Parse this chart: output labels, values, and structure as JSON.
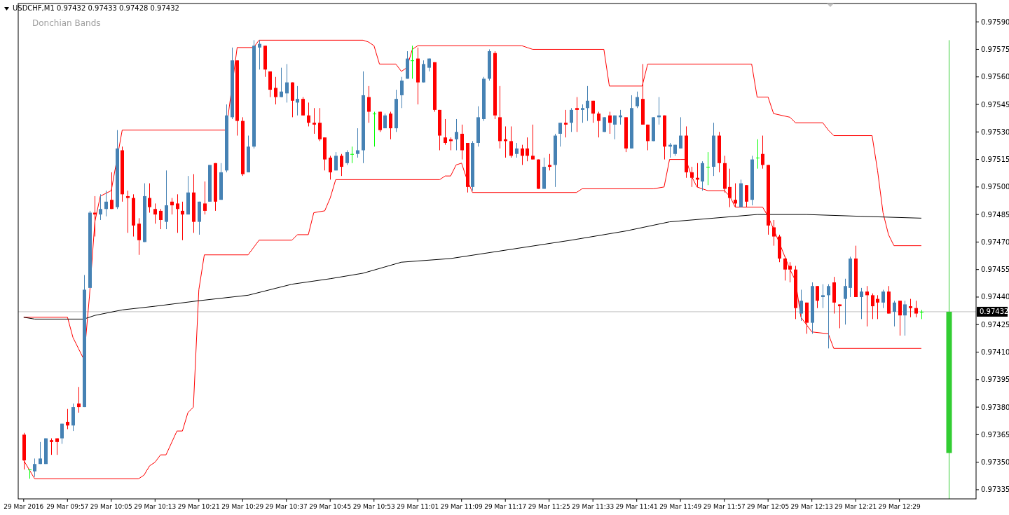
{
  "chart_data": {
    "type": "candlestick",
    "title": "USDCHF,M1 0.97432 0.97433 0.97428 0.97432",
    "subtitle": "Donchian Bands",
    "xlim": [
      "2016-03-29T09:48",
      "2016-03-29T12:43"
    ],
    "xticks": [
      {
        "value": "2016-03-29T09:49",
        "label": "29 Mar 2016"
      },
      {
        "value": "2016-03-29T09:57",
        "label": "29 Mar 09:57"
      },
      {
        "value": "2016-03-29T10:05",
        "label": "29 Mar 10:05"
      },
      {
        "value": "2016-03-29T10:13",
        "label": "29 Mar 10:13"
      },
      {
        "value": "2016-03-29T10:21",
        "label": "29 Mar 10:21"
      },
      {
        "value": "2016-03-29T10:29",
        "label": "29 Mar 10:29"
      },
      {
        "value": "2016-03-29T10:37",
        "label": "29 Mar 10:37"
      },
      {
        "value": "2016-03-29T10:45",
        "label": "29 Mar 10:45"
      },
      {
        "value": "2016-03-29T10:53",
        "label": "29 Mar 10:53"
      },
      {
        "value": "2016-03-29T11:01",
        "label": "29 Mar 11:01"
      },
      {
        "value": "2016-03-29T11:09",
        "label": "29 Mar 11:09"
      },
      {
        "value": "2016-03-29T11:17",
        "label": "29 Mar 11:17"
      },
      {
        "value": "2016-03-29T11:25",
        "label": "29 Mar 11:25"
      },
      {
        "value": "2016-03-29T11:33",
        "label": "29 Mar 11:33"
      },
      {
        "value": "2016-03-29T11:41",
        "label": "29 Mar 11:41"
      },
      {
        "value": "2016-03-29T11:49",
        "label": "29 Mar 11:49"
      },
      {
        "value": "2016-03-29T11:57",
        "label": "29 Mar 11:57"
      },
      {
        "value": "2016-03-29T12:05",
        "label": "29 Mar 12:05"
      },
      {
        "value": "2016-03-29T12:13",
        "label": "29 Mar 12:13"
      },
      {
        "value": "2016-03-29T12:21",
        "label": "29 Mar 12:21"
      },
      {
        "value": "2016-03-29T12:29",
        "label": "29 Mar 12:29"
      }
    ],
    "ylim": [
      0.9733,
      0.976
    ],
    "yticks": [
      0.97335,
      {
        "value": 0.9735,
        "label": "0.97350"
      },
      0.97365,
      {
        "value": 0.9738,
        "label": "0.97380"
      },
      0.97395,
      {
        "value": 0.9741,
        "label": "0.97410"
      },
      0.97425,
      {
        "value": 0.9744,
        "label": "0.97440"
      },
      0.97455,
      {
        "value": 0.9747,
        "label": "0.97470"
      },
      0.97485,
      {
        "value": 0.975,
        "label": "0.97500"
      },
      0.97515,
      {
        "value": 0.9753,
        "label": "0.97530"
      },
      0.97545,
      {
        "value": 0.9756,
        "label": "0.97560"
      },
      0.97575,
      {
        "value": 0.9759,
        "label": "0.97590"
      }
    ],
    "ref_lines": [
      {
        "axis": "y",
        "value": 0.97432,
        "label": "0.97432",
        "color": "#c0c0c0"
      }
    ],
    "series": [
      {
        "x": [
          "2016-03-29T09:49",
          "2016-03-29T09:50",
          "2016-03-29T09:51",
          "2016-03-29T09:52",
          "2016-03-29T09:53",
          "2016-03-29T09:54",
          "2016-03-29T09:55",
          "2016-03-29T09:56",
          "2016-03-29T09:57",
          "2016-03-29T09:58",
          "2016-03-29T09:59",
          "2016-03-29T10:00",
          "2016-03-29T10:01",
          "2016-03-29T10:02",
          "2016-03-29T10:03",
          "2016-03-29T10:04",
          "2016-03-29T10:05",
          "2016-03-29T10:06",
          "2016-03-29T10:07",
          "2016-03-29T10:08",
          "2016-03-29T10:09",
          "2016-03-29T10:10",
          "2016-03-29T10:11",
          "2016-03-29T10:12",
          "2016-03-29T10:13",
          "2016-03-29T10:14",
          "2016-03-29T10:15",
          "2016-03-29T10:16",
          "2016-03-29T10:17",
          "2016-03-29T10:18",
          "2016-03-29T10:19",
          "2016-03-29T10:20",
          "2016-03-29T10:21",
          "2016-03-29T10:22",
          "2016-03-29T10:23",
          "2016-03-29T10:24",
          "2016-03-29T10:25",
          "2016-03-29T10:26",
          "2016-03-29T10:27",
          "2016-03-29T10:28",
          "2016-03-29T10:29",
          "2016-03-29T10:30",
          "2016-03-29T10:31",
          "2016-03-29T10:32",
          "2016-03-29T10:33",
          "2016-03-29T10:34",
          "2016-03-29T10:35",
          "2016-03-29T10:36",
          "2016-03-29T10:37",
          "2016-03-29T10:38",
          "2016-03-29T10:39",
          "2016-03-29T10:40",
          "2016-03-29T10:41",
          "2016-03-29T10:42",
          "2016-03-29T10:43",
          "2016-03-29T10:44",
          "2016-03-29T10:45",
          "2016-03-29T10:46",
          "2016-03-29T10:47",
          "2016-03-29T10:48",
          "2016-03-29T10:49",
          "2016-03-29T10:50",
          "2016-03-29T10:51",
          "2016-03-29T10:52",
          "2016-03-29T10:53",
          "2016-03-29T10:54",
          "2016-03-29T10:55",
          "2016-03-29T10:56",
          "2016-03-29T10:57",
          "2016-03-29T10:58",
          "2016-03-29T10:59",
          "2016-03-29T11:00",
          "2016-03-29T11:01",
          "2016-03-29T11:02",
          "2016-03-29T11:03",
          "2016-03-29T11:04",
          "2016-03-29T11:05",
          "2016-03-29T11:06",
          "2016-03-29T11:07",
          "2016-03-29T11:08",
          "2016-03-29T11:09",
          "2016-03-29T11:10",
          "2016-03-29T11:11",
          "2016-03-29T11:12",
          "2016-03-29T11:13",
          "2016-03-29T11:14",
          "2016-03-29T11:15",
          "2016-03-29T11:16",
          "2016-03-29T11:17",
          "2016-03-29T11:18",
          "2016-03-29T11:19",
          "2016-03-29T11:20",
          "2016-03-29T11:21",
          "2016-03-29T11:22",
          "2016-03-29T11:23",
          "2016-03-29T11:24",
          "2016-03-29T11:25",
          "2016-03-29T11:26",
          "2016-03-29T11:27",
          "2016-03-29T11:28",
          "2016-03-29T11:29",
          "2016-03-29T11:30",
          "2016-03-29T11:31",
          "2016-03-29T11:32",
          "2016-03-29T11:33",
          "2016-03-29T11:34",
          "2016-03-29T11:35",
          "2016-03-29T11:36",
          "2016-03-29T11:37",
          "2016-03-29T11:38",
          "2016-03-29T11:39",
          "2016-03-29T11:40",
          "2016-03-29T11:41",
          "2016-03-29T11:42",
          "2016-03-29T11:43",
          "2016-03-29T11:44",
          "2016-03-29T11:45",
          "2016-03-29T11:46",
          "2016-03-29T11:47",
          "2016-03-29T11:48",
          "2016-03-29T11:49",
          "2016-03-29T11:50",
          "2016-03-29T11:51",
          "2016-03-29T11:52",
          "2016-03-29T11:53",
          "2016-03-29T11:54",
          "2016-03-29T11:55",
          "2016-03-29T11:56",
          "2016-03-29T11:57",
          "2016-03-29T11:58",
          "2016-03-29T11:59",
          "2016-03-29T12:00",
          "2016-03-29T12:01",
          "2016-03-29T12:02",
          "2016-03-29T12:03",
          "2016-03-29T12:04",
          "2016-03-29T12:05",
          "2016-03-29T12:06",
          "2016-03-29T12:07",
          "2016-03-29T12:08",
          "2016-03-29T12:09",
          "2016-03-29T12:10",
          "2016-03-29T12:11",
          "2016-03-29T12:12",
          "2016-03-29T12:13",
          "2016-03-29T12:14",
          "2016-03-29T12:15",
          "2016-03-29T12:16",
          "2016-03-29T12:17",
          "2016-03-29T12:18",
          "2016-03-29T12:19",
          "2016-03-29T12:20",
          "2016-03-29T12:21",
          "2016-03-29T12:22",
          "2016-03-29T12:23",
          "2016-03-29T12:24",
          "2016-03-29T12:25",
          "2016-03-29T12:26",
          "2016-03-29T12:27",
          "2016-03-29T12:28",
          "2016-03-29T12:29",
          "2016-03-29T12:30",
          "2016-03-29T12:31",
          "2016-03-29T12:32",
          "2016-03-29T12:33"
        ],
        "ohlc": [
          [
            0.97365,
            0.97366,
            0.97346,
            0.97351
          ],
          [
            0.97346,
            0.97346,
            0.97341,
            0.97346
          ],
          [
            0.97345,
            0.97352,
            0.97342,
            0.97349
          ],
          [
            0.97349,
            0.97361,
            0.97349,
            0.97352
          ],
          [
            0.97349,
            0.97363,
            0.97349,
            0.97363
          ],
          [
            0.97362,
            0.97363,
            0.97354,
            0.97361
          ],
          [
            0.97363,
            0.97363,
            0.97354,
            0.97361
          ],
          [
            0.97363,
            0.97371,
            0.9736,
            0.97371
          ],
          [
            0.97372,
            0.97379,
            0.97368,
            0.9737
          ],
          [
            0.9737,
            0.97382,
            0.97367,
            0.9738
          ],
          [
            0.97382,
            0.97391,
            0.97377,
            0.9738
          ],
          [
            0.9738,
            0.97452,
            0.9738,
            0.97444
          ],
          [
            0.97445,
            0.97487,
            0.97445,
            0.97486
          ],
          [
            0.97486,
            0.97495,
            0.97473,
            0.97485
          ],
          [
            0.97485,
            0.97496,
            0.97482,
            0.97488
          ],
          [
            0.97488,
            0.97498,
            0.97484,
            0.97492
          ],
          [
            0.97493,
            0.97508,
            0.97488,
            0.97488
          ],
          [
            0.97489,
            0.97531,
            0.97488,
            0.97521
          ],
          [
            0.9752,
            0.97522,
            0.97492,
            0.97496
          ],
          [
            0.97495,
            0.97498,
            0.97475,
            0.97494
          ],
          [
            0.97494,
            0.97496,
            0.97473,
            0.97479
          ],
          [
            0.9748,
            0.97483,
            0.97463,
            0.97471
          ],
          [
            0.9747,
            0.97502,
            0.9747,
            0.97495
          ],
          [
            0.97494,
            0.97502,
            0.97486,
            0.97489
          ],
          [
            0.97488,
            0.97491,
            0.9748,
            0.97485
          ],
          [
            0.97487,
            0.97488,
            0.97477,
            0.97482
          ],
          [
            0.97481,
            0.97509,
            0.97477,
            0.9749
          ],
          [
            0.97492,
            0.97494,
            0.97485,
            0.9749
          ],
          [
            0.97491,
            0.97496,
            0.97475,
            0.97488
          ],
          [
            0.97487,
            0.97492,
            0.97471,
            0.97485
          ],
          [
            0.97485,
            0.97506,
            0.97485,
            0.97497
          ],
          [
            0.97497,
            0.97507,
            0.97475,
            0.97481
          ],
          [
            0.97481,
            0.97492,
            0.97474,
            0.97492
          ],
          [
            0.97491,
            0.97503,
            0.97485,
            0.97487
          ],
          [
            0.97492,
            0.97512,
            0.97492,
            0.97512
          ],
          [
            0.97513,
            0.97513,
            0.97487,
            0.97492
          ],
          [
            0.97493,
            0.97513,
            0.97493,
            0.97508
          ],
          [
            0.97509,
            0.97545,
            0.97508,
            0.97539
          ],
          [
            0.97538,
            0.97576,
            0.97537,
            0.97569
          ],
          [
            0.97569,
            0.97569,
            0.97528,
            0.97536
          ],
          [
            0.97536,
            0.97538,
            0.97506,
            0.97507
          ],
          [
            0.97508,
            0.97528,
            0.97508,
            0.97522
          ],
          [
            0.97522,
            0.9758,
            0.97521,
            0.97577
          ],
          [
            0.97576,
            0.9758,
            0.97564,
            0.97578
          ],
          [
            0.97577,
            0.97577,
            0.9756,
            0.97564
          ],
          [
            0.97563,
            0.97563,
            0.97549,
            0.97553
          ],
          [
            0.97554,
            0.9756,
            0.97545,
            0.97549
          ],
          [
            0.97549,
            0.97565,
            0.97549,
            0.97552
          ],
          [
            0.97551,
            0.97567,
            0.97546,
            0.97557
          ],
          [
            0.97557,
            0.97557,
            0.97538,
            0.97547
          ],
          [
            0.97546,
            0.97555,
            0.97539,
            0.97548
          ],
          [
            0.97548,
            0.97549,
            0.97539,
            0.97539
          ],
          [
            0.97539,
            0.97546,
            0.97533,
            0.97535
          ],
          [
            0.97535,
            0.97543,
            0.97529,
            0.97534
          ],
          [
            0.97535,
            0.97543,
            0.97525,
            0.97526
          ],
          [
            0.97527,
            0.97527,
            0.97509,
            0.97515
          ],
          [
            0.97516,
            0.97517,
            0.97504,
            0.97508
          ],
          [
            0.97509,
            0.97519,
            0.97509,
            0.97517
          ],
          [
            0.97517,
            0.97518,
            0.97506,
            0.97511
          ],
          [
            0.97513,
            0.9752,
            0.97512,
            0.97519
          ],
          [
            0.97518,
            0.97522,
            0.97513,
            0.97518
          ],
          [
            0.97518,
            0.97532,
            0.97516,
            0.9752
          ],
          [
            0.9752,
            0.97563,
            0.97513,
            0.9755
          ],
          [
            0.97549,
            0.97555,
            0.97535,
            0.97541
          ],
          [
            0.9754,
            0.97541,
            0.97522,
            0.9754
          ],
          [
            0.97541,
            0.97541,
            0.9753,
            0.97531
          ],
          [
            0.97532,
            0.9754,
            0.97532,
            0.97539
          ],
          [
            0.9754,
            0.97541,
            0.97526,
            0.97532
          ],
          [
            0.97532,
            0.97553,
            0.9753,
            0.97548
          ],
          [
            0.9755,
            0.9756,
            0.97543,
            0.97558
          ],
          [
            0.97559,
            0.97574,
            0.97559,
            0.9757
          ],
          [
            0.97569,
            0.97577,
            0.97559,
            0.97569
          ],
          [
            0.9757,
            0.97576,
            0.97545,
            0.97557
          ],
          [
            0.97557,
            0.97569,
            0.97557,
            0.97567
          ],
          [
            0.97565,
            0.9757,
            0.97563,
            0.9757
          ],
          [
            0.97568,
            0.97568,
            0.97541,
            0.97542
          ],
          [
            0.97542,
            0.97542,
            0.9752,
            0.97528
          ],
          [
            0.97527,
            0.97537,
            0.97523,
            0.97524
          ],
          [
            0.97526,
            0.97527,
            0.9752,
            0.97525
          ],
          [
            0.97526,
            0.97537,
            0.9752,
            0.9753
          ],
          [
            0.97529,
            0.97534,
            0.97515,
            0.9752
          ],
          [
            0.97524,
            0.97524,
            0.97497,
            0.975
          ],
          [
            0.975,
            0.97525,
            0.97498,
            0.97524
          ],
          [
            0.97524,
            0.97544,
            0.97522,
            0.97538
          ],
          [
            0.97537,
            0.9756,
            0.97536,
            0.97559
          ],
          [
            0.97559,
            0.97575,
            0.97558,
            0.97574
          ],
          [
            0.97573,
            0.97574,
            0.97537,
            0.97539
          ],
          [
            0.97538,
            0.97555,
            0.97521,
            0.97525
          ],
          [
            0.97526,
            0.97533,
            0.97516,
            0.97525
          ],
          [
            0.97525,
            0.97533,
            0.97516,
            0.97517
          ],
          [
            0.97518,
            0.97524,
            0.97516,
            0.97521
          ],
          [
            0.97521,
            0.97523,
            0.97512,
            0.97517
          ],
          [
            0.97521,
            0.97527,
            0.97514,
            0.97517
          ],
          [
            0.97517,
            0.97534,
            0.97515,
            0.97515
          ],
          [
            0.97515,
            0.97515,
            0.97499,
            0.97499
          ],
          [
            0.97499,
            0.97516,
            0.97499,
            0.97511
          ],
          [
            0.97512,
            0.97518,
            0.97509,
            0.97511
          ],
          [
            0.97512,
            0.97529,
            0.975,
            0.97528
          ],
          [
            0.97529,
            0.97535,
            0.97522,
            0.97535
          ],
          [
            0.97535,
            0.97542,
            0.97527,
            0.97534
          ],
          [
            0.97535,
            0.97543,
            0.9753,
            0.97542
          ],
          [
            0.97543,
            0.97549,
            0.9753,
            0.97542
          ],
          [
            0.97542,
            0.97545,
            0.97535,
            0.97543
          ],
          [
            0.97543,
            0.97555,
            0.97536,
            0.97547
          ],
          [
            0.97547,
            0.97547,
            0.97535,
            0.9754
          ],
          [
            0.9754,
            0.97541,
            0.97527,
            0.97536
          ],
          [
            0.9753,
            0.97538,
            0.9753,
            0.97538
          ],
          [
            0.97539,
            0.97541,
            0.97529,
            0.97535
          ],
          [
            0.97534,
            0.97539,
            0.97526,
            0.97539
          ],
          [
            0.97538,
            0.97542,
            0.97534,
            0.97539
          ],
          [
            0.97538,
            0.97538,
            0.97519,
            0.97521
          ],
          [
            0.97521,
            0.9755,
            0.97521,
            0.97543
          ],
          [
            0.97544,
            0.97552,
            0.97543,
            0.97549
          ],
          [
            0.97548,
            0.97567,
            0.97534,
            0.97534
          ],
          [
            0.97534,
            0.97534,
            0.9752,
            0.97525
          ],
          [
            0.97525,
            0.97538,
            0.97525,
            0.97538
          ],
          [
            0.97538,
            0.97549,
            0.97534,
            0.97539
          ],
          [
            0.97539,
            0.97539,
            0.97515,
            0.97522
          ],
          [
            0.97522,
            0.97524,
            0.97516,
            0.97523
          ],
          [
            0.97518,
            0.97523,
            0.97517,
            0.97523
          ],
          [
            0.97521,
            0.97538,
            0.97521,
            0.97528
          ],
          [
            0.97528,
            0.97533,
            0.97505,
            0.97508
          ],
          [
            0.97508,
            0.97511,
            0.975,
            0.97505
          ],
          [
            0.97505,
            0.97513,
            0.975,
            0.97504
          ],
          [
            0.97503,
            0.97514,
            0.97498,
            0.97513
          ],
          [
            0.97511,
            0.97519,
            0.97501,
            0.97511
          ],
          [
            0.97511,
            0.97535,
            0.97506,
            0.97528
          ],
          [
            0.97528,
            0.9753,
            0.97508,
            0.97513
          ],
          [
            0.97513,
            0.97517,
            0.97497,
            0.97499
          ],
          [
            0.975,
            0.9751,
            0.97489,
            0.97494
          ],
          [
            0.97493,
            0.97502,
            0.97489,
            0.97491
          ],
          [
            0.97489,
            0.97504,
            0.97489,
            0.97502
          ],
          [
            0.97501,
            0.97501,
            0.97489,
            0.97492
          ],
          [
            0.97493,
            0.97517,
            0.9749,
            0.97515
          ],
          [
            0.97516,
            0.97526,
            0.9751,
            0.97516
          ],
          [
            0.97518,
            0.97528,
            0.9751,
            0.97512
          ],
          [
            0.97512,
            0.97512,
            0.97474,
            0.97479
          ],
          [
            0.97478,
            0.97482,
            0.97468,
            0.97473
          ],
          [
            0.97473,
            0.97474,
            0.97459,
            0.97461
          ],
          [
            0.97461,
            0.97462,
            0.97449,
            0.97455
          ],
          [
            0.97457,
            0.97459,
            0.97448,
            0.97455
          ],
          [
            0.97455,
            0.97457,
            0.97428,
            0.97434
          ],
          [
            0.97431,
            0.97444,
            0.97427,
            0.97438
          ],
          [
            0.97437,
            0.97437,
            0.9742,
            0.97426
          ],
          [
            0.97426,
            0.97448,
            0.9742,
            0.97446
          ],
          [
            0.97446,
            0.97446,
            0.97434,
            0.97438
          ],
          [
            0.9744,
            0.97447,
            0.97434,
            0.97441
          ],
          [
            0.97441,
            0.97447,
            0.97412,
            0.97446
          ],
          [
            0.97448,
            0.97451,
            0.97431,
            0.97437
          ],
          [
            0.97436,
            0.97436,
            0.97423,
            0.97435
          ],
          [
            0.97439,
            0.9745,
            0.97425,
            0.97446
          ],
          [
            0.97445,
            0.97462,
            0.9744,
            0.97461
          ],
          [
            0.97461,
            0.97468,
            0.9744,
            0.9744
          ],
          [
            0.9744,
            0.97445,
            0.97428,
            0.97443
          ],
          [
            0.97443,
            0.97446,
            0.97424,
            0.97441
          ],
          [
            0.97441,
            0.97442,
            0.97428,
            0.97435
          ],
          [
            0.97439,
            0.97441,
            0.97428,
            0.97437
          ],
          [
            0.97437,
            0.97444,
            0.97434,
            0.97443
          ],
          [
            0.97443,
            0.97446,
            0.97431,
            0.97431
          ],
          [
            0.97432,
            0.97438,
            0.97424,
            0.97437
          ],
          [
            0.97438,
            0.97438,
            0.97419,
            0.9743
          ],
          [
            0.9743,
            0.97438,
            0.97419,
            0.97436
          ],
          [
            0.97435,
            0.97439,
            0.97429,
            0.97434
          ],
          [
            0.97434,
            0.97438,
            0.97429,
            0.97431
          ],
          [
            0.97432,
            0.97433,
            0.97428,
            0.97432
          ]
        ],
        "colors": [
          "#ff0000",
          "#00ff00",
          "#4682b4",
          "#4682b4",
          "#4682b4",
          "#ff0000",
          "#ff0000",
          "#4682b4",
          "#ff0000",
          "#4682b4",
          "#ff0000",
          "#4682b4",
          "#4682b4",
          "#ff0000",
          "#4682b4",
          "#4682b4",
          "#ff0000",
          "#4682b4",
          "#ff0000",
          "#ff0000",
          "#ff0000",
          "#ff0000",
          "#4682b4",
          "#ff0000",
          "#ff0000",
          "#ff0000",
          "#4682b4",
          "#ff0000",
          "#ff0000",
          "#ff0000",
          "#4682b4",
          "#ff0000",
          "#4682b4",
          "#ff0000",
          "#4682b4",
          "#ff0000",
          "#4682b4",
          "#4682b4",
          "#4682b4",
          "#ff0000",
          "#ff0000",
          "#4682b4",
          "#4682b4",
          "#4682b4",
          "#ff0000",
          "#ff0000",
          "#ff0000",
          "#4682b4",
          "#4682b4",
          "#ff0000",
          "#4682b4",
          "#ff0000",
          "#ff0000",
          "#ff0000",
          "#ff0000",
          "#ff0000",
          "#ff0000",
          "#4682b4",
          "#ff0000",
          "#4682b4",
          "#00ff00",
          "#4682b4",
          "#4682b4",
          "#ff0000",
          "#00ff00",
          "#ff0000",
          "#4682b4",
          "#ff0000",
          "#4682b4",
          "#4682b4",
          "#4682b4",
          "#00ff00",
          "#ff0000",
          "#4682b4",
          "#4682b4",
          "#ff0000",
          "#ff0000",
          "#ff0000",
          "#ff0000",
          "#4682b4",
          "#ff0000",
          "#ff0000",
          "#4682b4",
          "#4682b4",
          "#4682b4",
          "#4682b4",
          "#ff0000",
          "#ff0000",
          "#ff0000",
          "#ff0000",
          "#4682b4",
          "#ff0000",
          "#ff0000",
          "#ff0000",
          "#ff0000",
          "#4682b4",
          "#ff0000",
          "#4682b4",
          "#4682b4",
          "#ff0000",
          "#4682b4",
          "#ff0000",
          "#4682b4",
          "#4682b4",
          "#ff0000",
          "#ff0000",
          "#4682b4",
          "#ff0000",
          "#4682b4",
          "#4682b4",
          "#ff0000",
          "#4682b4",
          "#4682b4",
          "#ff0000",
          "#ff0000",
          "#4682b4",
          "#4682b4",
          "#ff0000",
          "#4682b4",
          "#4682b4",
          "#4682b4",
          "#ff0000",
          "#ff0000",
          "#ff0000",
          "#4682b4",
          "#00ff00",
          "#4682b4",
          "#ff0000",
          "#ff0000",
          "#ff0000",
          "#ff0000",
          "#4682b4",
          "#ff0000",
          "#4682b4",
          "#00ff00",
          "#ff0000",
          "#ff0000",
          "#ff0000",
          "#ff0000",
          "#ff0000",
          "#ff0000",
          "#ff0000",
          "#4682b4",
          "#ff0000",
          "#4682b4",
          "#ff0000",
          "#4682b4",
          "#4682b4",
          "#ff0000",
          "#ff0000",
          "#4682b4",
          "#4682b4",
          "#ff0000",
          "#4682b4",
          "#ff0000",
          "#ff0000",
          "#ff0000",
          "#4682b4",
          "#ff0000",
          "#4682b4",
          "#ff0000",
          "#4682b4",
          "#ff0000",
          "#ff0000",
          "#00ff00"
        ]
      },
      {
        "type": "line",
        "color": "#ff0000",
        "x": [
          "2016-03-29T09:49",
          "2016-03-29T09:57",
          "2016-03-29T09:58",
          "2016-03-29T09:59",
          "2016-03-29T10:00",
          "2016-03-29T10:01",
          "2016-03-29T10:02",
          "2016-03-29T10:03",
          "2016-03-29T10:05",
          "2016-03-29T10:07",
          "2016-03-29T10:26",
          "2016-03-29T10:28",
          "2016-03-29T10:31",
          "2016-03-29T10:32",
          "2016-03-29T10:51",
          "2016-03-29T10:52",
          "2016-03-29T10:53",
          "2016-03-29T10:54",
          "2016-03-29T10:57",
          "2016-03-29T10:58",
          "2016-03-29T10:59",
          "2016-03-29T11:00",
          "2016-03-29T11:01",
          "2016-03-29T11:20",
          "2016-03-29T11:21",
          "2016-03-29T11:22",
          "2016-03-29T11:35",
          "2016-03-29T11:36",
          "2016-03-29T11:42",
          "2016-03-29T11:43",
          "2016-03-29T12:02",
          "2016-03-29T12:03",
          "2016-03-29T12:05",
          "2016-03-29T12:06",
          "2016-03-29T12:09",
          "2016-03-29T12:10",
          "2016-03-29T12:15",
          "2016-03-29T12:16",
          "2016-03-29T12:17",
          "2016-03-29T12:24",
          "2016-03-29T12:25",
          "2016-03-29T12:26",
          "2016-03-29T12:27",
          "2016-03-29T12:28",
          "2016-03-29T12:33"
        ],
        "values": [
          0.97429,
          0.97429,
          0.97418,
          0.97412,
          0.97406,
          0.9744,
          0.97481,
          0.97495,
          0.97498,
          0.97531,
          0.97531,
          0.97576,
          0.97576,
          0.9758,
          0.9758,
          0.97579,
          0.97577,
          0.97567,
          0.97567,
          0.97563,
          0.97565,
          0.97575,
          0.97577,
          0.97577,
          0.97576,
          0.97575,
          0.97575,
          0.97555,
          0.97555,
          0.97567,
          0.97567,
          0.97549,
          0.97549,
          0.9754,
          0.97538,
          0.97535,
          0.97535,
          0.97531,
          0.97528,
          0.97528,
          0.97509,
          0.97486,
          0.97474,
          0.97468,
          0.97468
        ]
      },
      {
        "type": "line",
        "color": "#ff0000",
        "x": [
          "2016-03-29T09:49",
          "2016-03-29T09:50",
          "2016-03-29T09:51",
          "2016-03-29T10:10",
          "2016-03-29T10:11",
          "2016-03-29T10:12",
          "2016-03-29T10:13",
          "2016-03-29T10:14",
          "2016-03-29T10:15",
          "2016-03-29T10:17",
          "2016-03-29T10:18",
          "2016-03-29T10:19",
          "2016-03-29T10:20",
          "2016-03-29T10:21",
          "2016-03-29T10:22",
          "2016-03-29T10:30",
          "2016-03-29T10:32",
          "2016-03-29T10:38",
          "2016-03-29T10:39",
          "2016-03-29T10:41",
          "2016-03-29T10:42",
          "2016-03-29T10:44",
          "2016-03-29T10:45",
          "2016-03-29T10:46",
          "2016-03-29T11:05",
          "2016-03-29T11:06",
          "2016-03-29T11:07",
          "2016-03-29T11:08",
          "2016-03-29T11:09",
          "2016-03-29T11:10",
          "2016-03-29T11:11",
          "2016-03-29T11:30",
          "2016-03-29T11:31",
          "2016-03-29T11:44",
          "2016-03-29T11:46",
          "2016-03-29T11:47",
          "2016-03-29T11:49",
          "2016-03-29T11:50",
          "2016-03-29T11:51",
          "2016-03-29T11:52",
          "2016-03-29T11:54",
          "2016-03-29T11:57",
          "2016-03-29T11:58",
          "2016-03-29T11:59",
          "2016-03-29T12:04",
          "2016-03-29T12:05",
          "2016-03-29T12:07",
          "2016-03-29T12:09",
          "2016-03-29T12:10",
          "2016-03-29T12:11",
          "2016-03-29T12:13",
          "2016-03-29T12:16",
          "2016-03-29T12:17",
          "2016-03-29T12:33"
        ],
        "values": [
          0.97351,
          0.97346,
          0.97341,
          0.97341,
          0.97343,
          0.97348,
          0.9735,
          0.97354,
          0.97354,
          0.97367,
          0.97367,
          0.97377,
          0.9738,
          0.97444,
          0.97463,
          0.97463,
          0.97471,
          0.97471,
          0.97474,
          0.97474,
          0.97486,
          0.97487,
          0.97494,
          0.97504,
          0.97504,
          0.97506,
          0.97506,
          0.97512,
          0.97513,
          0.97504,
          0.97497,
          0.97497,
          0.97499,
          0.97499,
          0.975,
          0.97515,
          0.97515,
          0.97515,
          0.97506,
          0.975,
          0.97498,
          0.97498,
          0.97495,
          0.97489,
          0.97489,
          0.97484,
          0.9747,
          0.97455,
          0.97449,
          0.97429,
          0.97421,
          0.9742,
          0.97412,
          0.97412
        ]
      },
      {
        "type": "line",
        "color": "#000000",
        "x": [
          "2016-03-29T09:49",
          "2016-03-29T09:51",
          "2016-03-29T10:00",
          "2016-03-29T10:02",
          "2016-03-29T10:07",
          "2016-03-29T10:13",
          "2016-03-29T10:21",
          "2016-03-29T10:30",
          "2016-03-29T10:38",
          "2016-03-29T10:45",
          "2016-03-29T10:51",
          "2016-03-29T10:58",
          "2016-03-29T11:07",
          "2016-03-29T11:29",
          "2016-03-29T11:39",
          "2016-03-29T11:47",
          "2016-03-29T11:55",
          "2016-03-29T12:03",
          "2016-03-29T12:12",
          "2016-03-29T12:22",
          "2016-03-29T12:33"
        ],
        "values": [
          0.97429,
          0.97428,
          0.97428,
          0.9743,
          0.97433,
          0.97435,
          0.97438,
          0.97441,
          0.97447,
          0.9745,
          0.97453,
          0.97459,
          0.97461,
          0.97471,
          0.97476,
          0.97481,
          0.97483,
          0.97485,
          0.97485,
          0.97484,
          0.97483
        ]
      },
      {
        "color": "#32cd32",
        "x": [
          "2016-03-29T12:38"
        ],
        "ohlc": [
          [
            0.97432,
            0.9758,
            0.9733,
            0.97355
          ]
        ]
      }
    ]
  }
}
